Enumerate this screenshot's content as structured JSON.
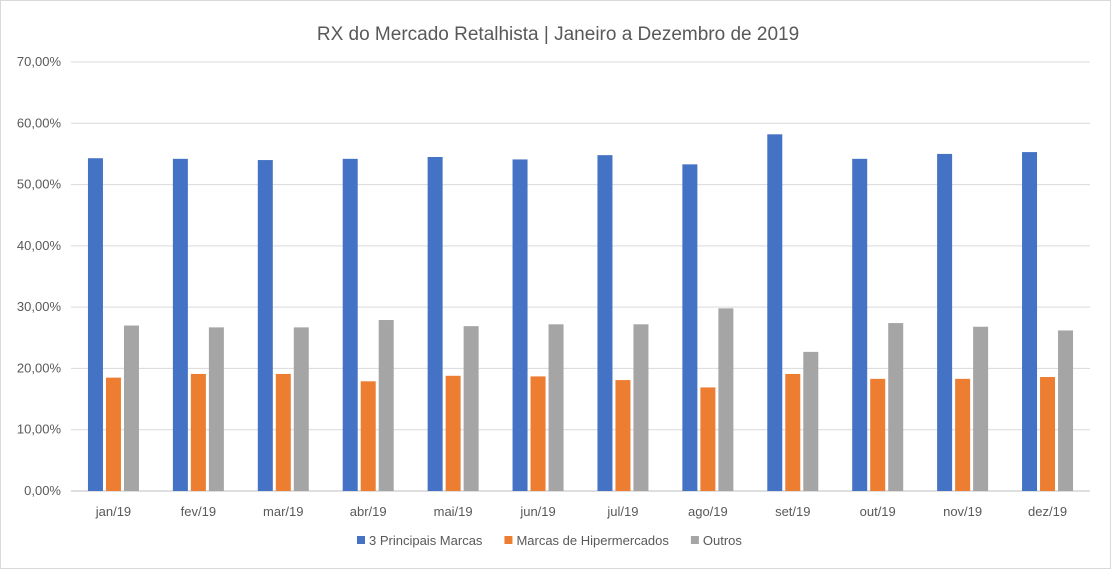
{
  "chart_data": {
    "type": "bar",
    "title": "RX do Mercado Retalhista  | Janeiro a Dezembro de 2019",
    "xlabel": "",
    "ylabel": "",
    "categories": [
      "jan/19",
      "fev/19",
      "mar/19",
      "abr/19",
      "mai/19",
      "jun/19",
      "jul/19",
      "ago/19",
      "set/19",
      "out/19",
      "nov/19",
      "dez/19"
    ],
    "y_ticks": [
      "0,00%",
      "10,00%",
      "20,00%",
      "30,00%",
      "40,00%",
      "50,00%",
      "60,00%",
      "70,00%"
    ],
    "ylim": [
      0,
      70
    ],
    "grid": true,
    "legend_position": "bottom",
    "series": [
      {
        "name": "3 Principais Marcas",
        "color": "#4472c4",
        "values": [
          54.3,
          54.2,
          54.0,
          54.2,
          54.5,
          54.1,
          54.8,
          53.3,
          58.2,
          54.2,
          55.0,
          55.3
        ]
      },
      {
        "name": "Marcas de Hipermercados",
        "color": "#ed7d31",
        "values": [
          18.5,
          19.1,
          19.1,
          17.9,
          18.8,
          18.7,
          18.1,
          16.9,
          19.1,
          18.3,
          18.3,
          18.6
        ]
      },
      {
        "name": "Outros",
        "color": "#a5a5a5",
        "values": [
          27.0,
          26.7,
          26.7,
          27.9,
          26.9,
          27.2,
          27.2,
          29.8,
          22.7,
          27.4,
          26.8,
          26.2
        ]
      }
    ]
  }
}
